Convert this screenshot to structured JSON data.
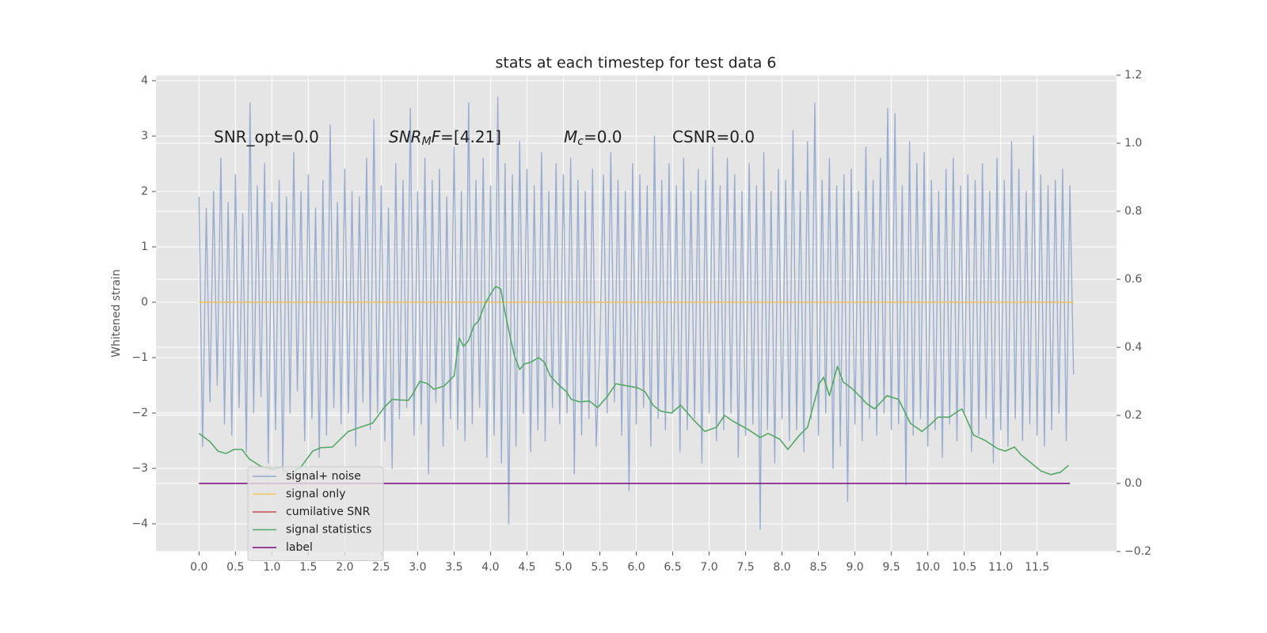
{
  "chart_data": {
    "type": "line",
    "title": "stats at each timestep for test data 6",
    "ylabel": "Whitened strain",
    "xlim": [
      -0.59,
      12.59
    ],
    "ylim": [
      -4.5,
      4.1
    ],
    "y2lim": [
      -0.2,
      1.2
    ],
    "xticks": [
      {
        "value": 0,
        "label": "0.0"
      },
      0.5,
      {
        "value": 1,
        "label": "1.0"
      },
      1.5,
      {
        "value": 2,
        "label": "2.0"
      },
      2.5,
      {
        "value": 3,
        "label": "3.0"
      },
      3.5,
      {
        "value": 4,
        "label": "4.0"
      },
      4.5,
      {
        "value": 5,
        "label": "5.0"
      },
      5.5,
      {
        "value": 6,
        "label": "6.0"
      },
      6.5,
      {
        "value": 7,
        "label": "7.0"
      },
      7.5,
      {
        "value": 8,
        "label": "8.0"
      },
      8.5,
      {
        "value": 9,
        "label": "9.0"
      },
      9.5,
      {
        "value": 10,
        "label": "10.0"
      },
      10.5,
      {
        "value": 11,
        "label": "11.0"
      },
      11.5
    ],
    "yticks": [
      {
        "value": -4,
        "label": "−4"
      },
      {
        "value": -3,
        "label": "−3"
      },
      {
        "value": -2,
        "label": "−2"
      },
      {
        "value": -1,
        "label": "−1"
      },
      0,
      1,
      2,
      3,
      4
    ],
    "y2ticks": [
      {
        "value": -0.2,
        "label": "−0.2"
      },
      {
        "value": 0,
        "label": "0.0"
      },
      0.2,
      0.4,
      0.6,
      0.8,
      {
        "value": 1,
        "label": "1.0"
      },
      1.2
    ],
    "grid": true,
    "legend": "lower left",
    "annotations": [
      [
        {
          "text": "SNR_opt=0.0",
          "style": "normal"
        }
      ],
      [
        {
          "text": "SNR",
          "style": "italic"
        },
        {
          "text": "M",
          "style": "sub"
        },
        {
          "text": "F",
          "style": "italic"
        },
        {
          "text": "=[4.21]",
          "style": "normal"
        }
      ],
      [
        {
          "text": "M",
          "style": "italic"
        },
        {
          "text": "c",
          "style": "sub"
        },
        {
          "text": "=0.0",
          "style": "normal"
        }
      ],
      [
        {
          "text": "CSNR=0.0",
          "style": "normal"
        }
      ]
    ],
    "series": [
      {
        "name": "signal+ noise",
        "color": "#8fa6cf",
        "x": [
          0,
          0.05,
          0.1,
          0.15,
          0.2,
          0.25,
          0.3,
          0.35,
          0.4,
          0.45,
          0.5,
          0.55,
          0.6,
          0.65,
          0.7,
          0.75,
          0.8,
          0.85,
          0.9,
          0.95,
          1,
          1.05,
          1.1,
          1.15,
          1.2,
          1.25,
          1.3,
          1.35,
          1.4,
          1.45,
          1.5,
          1.55,
          1.6,
          1.65,
          1.7,
          1.75,
          1.8,
          1.85,
          1.9,
          1.95,
          2,
          2.05,
          2.1,
          2.15,
          2.2,
          2.25,
          2.3,
          2.35,
          2.4,
          2.45,
          2.5,
          2.55,
          2.6,
          2.65,
          2.7,
          2.75,
          2.8,
          2.85,
          2.9,
          2.95,
          3,
          3.05,
          3.1,
          3.15,
          3.2,
          3.25,
          3.3,
          3.35,
          3.4,
          3.45,
          3.5,
          3.55,
          3.6,
          3.65,
          3.7,
          3.75,
          3.8,
          3.85,
          3.9,
          3.95,
          4,
          4.05,
          4.1,
          4.15,
          4.2,
          4.25,
          4.3,
          4.35,
          4.4,
          4.45,
          4.5,
          4.55,
          4.6,
          4.65,
          4.7,
          4.75,
          4.8,
          4.85,
          4.9,
          4.95,
          5,
          5.05,
          5.1,
          5.15,
          5.2,
          5.25,
          5.3,
          5.35,
          5.4,
          5.45,
          5.5,
          5.55,
          5.6,
          5.65,
          5.7,
          5.75,
          5.8,
          5.85,
          5.9,
          5.95,
          6,
          6.05,
          6.1,
          6.15,
          6.2,
          6.25,
          6.3,
          6.35,
          6.4,
          6.45,
          6.5,
          6.55,
          6.6,
          6.65,
          6.7,
          6.75,
          6.8,
          6.85,
          6.9,
          6.95,
          7,
          7.05,
          7.1,
          7.15,
          7.2,
          7.25,
          7.3,
          7.35,
          7.4,
          7.45,
          7.5,
          7.55,
          7.6,
          7.65,
          7.7,
          7.75,
          7.8,
          7.85,
          7.9,
          7.95,
          8,
          8.05,
          8.1,
          8.15,
          8.2,
          8.25,
          8.3,
          8.35,
          8.4,
          8.45,
          8.5,
          8.55,
          8.6,
          8.65,
          8.7,
          8.75,
          8.8,
          8.85,
          8.9,
          8.95,
          9,
          9.05,
          9.1,
          9.15,
          9.2,
          9.25,
          9.3,
          9.35,
          9.4,
          9.45,
          9.5,
          9.55,
          9.6,
          9.65,
          9.7,
          9.75,
          9.8,
          9.85,
          9.9,
          9.95,
          10,
          10.05,
          10.1,
          10.15,
          10.2,
          10.25,
          10.3,
          10.35,
          10.4,
          10.45,
          10.5,
          10.55,
          10.6,
          10.65,
          10.7,
          10.75,
          10.8,
          10.85,
          10.9,
          10.95,
          11,
          11.05,
          11.1,
          11.15,
          11.2,
          11.25,
          11.3,
          11.35,
          11.4,
          11.45,
          11.5,
          11.55,
          11.6,
          11.65,
          11.7,
          11.75,
          11.8,
          11.85,
          11.9,
          11.95,
          12
        ],
        "values": [
          1.9,
          -2.6,
          1.7,
          -1.8,
          2.0,
          -1.5,
          2.6,
          -2.2,
          1.8,
          -2.4,
          2.3,
          -1.9,
          1.6,
          -2.7,
          3.6,
          -2.0,
          2.1,
          -1.7,
          2.5,
          -2.9,
          1.8,
          -2.3,
          2.2,
          -3.1,
          1.9,
          -2.0,
          2.7,
          -1.6,
          2.0,
          -2.5,
          2.3,
          -2.1,
          1.7,
          -2.8,
          2.2,
          -2.4,
          3.2,
          -1.9,
          1.8,
          -2.2,
          2.4,
          -2.0,
          2.0,
          -2.6,
          1.9,
          -1.8,
          2.6,
          -2.3,
          3.3,
          -2.0,
          2.1,
          -2.5,
          1.7,
          -3.0,
          2.5,
          -2.1,
          2.2,
          -1.9,
          3.5,
          -2.4,
          2.0,
          -2.2,
          2.6,
          -3.1,
          2.2,
          -1.8,
          2.4,
          -2.6,
          1.9,
          -2.1,
          2.8,
          -2.3,
          2.0,
          -2.5,
          3.6,
          -2.2,
          2.2,
          -1.9,
          2.6,
          -2.8,
          2.1,
          -2.4,
          3.7,
          -2.9,
          2.5,
          -4.0,
          2.3,
          -2.6,
          2.9,
          -2.0,
          2.4,
          -2.7,
          2.1,
          -2.3,
          2.7,
          -2.5,
          2.0,
          -1.9,
          2.5,
          -2.2,
          2.3,
          -2.0,
          2.6,
          -3.1,
          2.2,
          -2.4,
          2.0,
          -2.1,
          2.4,
          -2.6,
          -0.8,
          2.3,
          -2.0,
          2.7,
          -1.8,
          2.2,
          -2.4,
          2.0,
          -3.4,
          2.5,
          -2.2,
          2.3,
          -1.9,
          2.1,
          -2.6,
          3.0,
          -2.1,
          2.2,
          -2.3,
          2.5,
          -2.0,
          2.1,
          -2.7,
          2.6,
          -2.3,
          2.0,
          -2.1,
          2.4,
          -2.9,
          2.2,
          -2.0,
          2.8,
          -2.5,
          2.1,
          -2.3,
          2.6,
          -2.0,
          2.3,
          -2.8,
          2.0,
          -2.4,
          2.5,
          -2.2,
          2.1,
          -4.1,
          2.7,
          -2.3,
          2.0,
          -2.9,
          2.4,
          -2.1,
          2.2,
          -2.5,
          3.1,
          -2.3,
          2.0,
          -2.7,
          2.9,
          -2.1,
          3.6,
          -2.4,
          2.2,
          -2.0,
          2.6,
          -3.0,
          2.1,
          -2.6,
          2.3,
          -3.6,
          2.4,
          -2.2,
          2.0,
          -2.5,
          2.8,
          -2.1,
          2.2,
          -2.4,
          2.6,
          -2.0,
          3.5,
          -2.3,
          3.4,
          -2.2,
          2.1,
          -3.3,
          2.9,
          -2.4,
          2.5,
          -2.1,
          2.7,
          -2.6,
          2.2,
          -2.3,
          2.0,
          -2.8,
          2.4,
          -2.2,
          2.6,
          -2.5,
          2.1,
          -2.0,
          2.3,
          -2.7,
          2.2,
          -2.4,
          2.5,
          -2.1,
          2.0,
          -2.9,
          2.6,
          -2.3,
          2.2,
          -2.6,
          2.9,
          -2.1,
          2.4,
          -2.5,
          2.0,
          -2.2,
          3.0,
          -2.4,
          2.3,
          -2.6,
          2.1,
          -2.3,
          2.2,
          -2.0,
          2.4,
          -2.5,
          2.1,
          -1.3
        ]
      },
      {
        "name": "signal only",
        "color": "#f2c45a",
        "x": [
          0,
          12
        ],
        "values": [
          0,
          0
        ]
      },
      {
        "name": "cumilative SNR",
        "color": "#c44e52",
        "x": [],
        "values": []
      },
      {
        "name": "signal statistics",
        "color": "#55a868",
        "axis": "y2",
        "x": [
          0,
          0.15,
          0.26,
          0.37,
          0.48,
          0.59,
          0.69,
          0.86,
          1.02,
          1.13,
          1.24,
          1.4,
          1.56,
          1.67,
          1.83,
          1.94,
          2.05,
          2.21,
          2.38,
          2.54,
          2.65,
          2.87,
          2.92,
          3.03,
          3.14,
          3.22,
          3.36,
          3.5,
          3.57,
          3.63,
          3.7,
          3.77,
          3.84,
          3.92,
          4.01,
          4.07,
          4.14,
          4.2,
          4.28,
          4.33,
          4.4,
          4.46,
          4.55,
          4.66,
          4.74,
          4.82,
          4.93,
          5.04,
          5.11,
          5.22,
          5.36,
          5.47,
          5.61,
          5.72,
          5.85,
          6.02,
          6.12,
          6.23,
          6.34,
          6.48,
          6.61,
          6.78,
          6.94,
          7.1,
          7.21,
          7.32,
          7.54,
          7.7,
          7.81,
          7.97,
          8.08,
          8.24,
          8.35,
          8.51,
          8.57,
          8.65,
          8.76,
          8.84,
          8.95,
          9.06,
          9.16,
          9.27,
          9.44,
          9.6,
          9.76,
          9.92,
          10.03,
          10.14,
          10.3,
          10.41,
          10.47,
          10.63,
          10.79,
          10.96,
          11.06,
          11.19,
          11.28,
          11.39,
          11.55,
          11.69,
          11.82,
          11.93
        ],
        "values": [
          0.147,
          0.123,
          0.095,
          0.088,
          0.1,
          0.1,
          0.072,
          0.049,
          0.042,
          0.049,
          0.026,
          0.049,
          0.095,
          0.105,
          0.107,
          0.13,
          0.153,
          0.165,
          0.177,
          0.223,
          0.247,
          0.244,
          0.258,
          0.3,
          0.293,
          0.277,
          0.286,
          0.316,
          0.428,
          0.402,
          0.421,
          0.463,
          0.479,
          0.526,
          0.56,
          0.579,
          0.572,
          0.502,
          0.421,
          0.374,
          0.335,
          0.351,
          0.356,
          0.37,
          0.356,
          0.316,
          0.291,
          0.27,
          0.247,
          0.24,
          0.242,
          0.223,
          0.258,
          0.293,
          0.288,
          0.281,
          0.27,
          0.23,
          0.212,
          0.207,
          0.23,
          0.188,
          0.153,
          0.165,
          0.2,
          0.184,
          0.158,
          0.135,
          0.147,
          0.13,
          0.1,
          0.142,
          0.165,
          0.293,
          0.312,
          0.258,
          0.344,
          0.298,
          0.281,
          0.258,
          0.235,
          0.219,
          0.258,
          0.247,
          0.177,
          0.153,
          0.172,
          0.195,
          0.195,
          0.212,
          0.219,
          0.142,
          0.126,
          0.102,
          0.095,
          0.107,
          0.084,
          0.065,
          0.037,
          0.026,
          0.033,
          0.053
        ]
      },
      {
        "name": "label",
        "color": "#7b0a7f",
        "axis": "y2",
        "x": [
          0,
          11.95
        ],
        "values": [
          0,
          0
        ]
      }
    ]
  }
}
